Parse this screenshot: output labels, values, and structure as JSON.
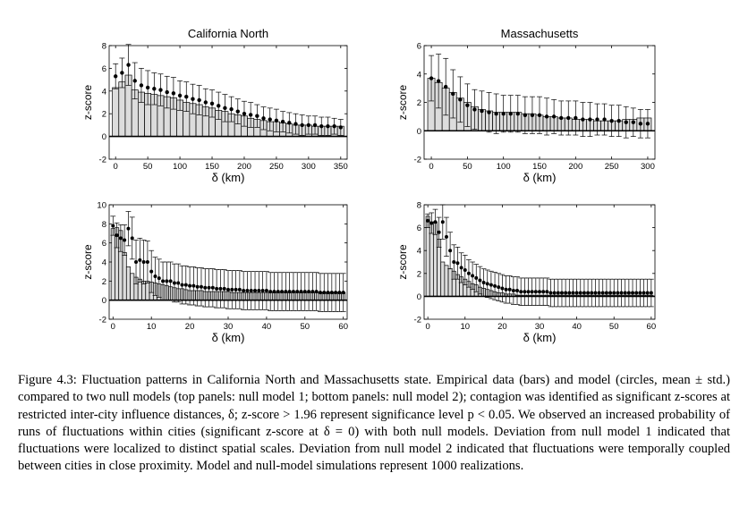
{
  "colors": {
    "bar_fill": "#dcdcdc",
    "bar_stroke": "#000000",
    "marker": "#000000"
  },
  "chart_data": [
    {
      "type": "bar",
      "title": "California North",
      "xlabel": "δ (km)",
      "ylabel": "z-score",
      "xlim": [
        -10,
        360
      ],
      "ylim": [
        -2,
        8
      ],
      "xticks": [
        0,
        50,
        100,
        150,
        200,
        250,
        300,
        350
      ],
      "yticks": [
        -2,
        0,
        2,
        4,
        6,
        8
      ],
      "step": 10,
      "series": [
        {
          "kind": "bars",
          "values": [
            4.3,
            4.8,
            5.4,
            4.1,
            3.9,
            3.8,
            3.7,
            3.6,
            3.5,
            3.4,
            3.2,
            3.0,
            2.9,
            2.8,
            2.6,
            2.5,
            2.3,
            2.2,
            2.0,
            1.9,
            1.8,
            1.6,
            1.5,
            1.4,
            1.3,
            1.3,
            1.2,
            1.1,
            1.0,
            1.0,
            1.0,
            0.9,
            0.9,
            0.9,
            0.9,
            0.9
          ]
        },
        {
          "kind": "errorbars",
          "values": [
            5.3,
            5.6,
            6.3,
            4.9,
            4.5,
            4.3,
            4.2,
            4.1,
            3.9,
            3.8,
            3.6,
            3.5,
            3.3,
            3.2,
            3.0,
            2.9,
            2.7,
            2.5,
            2.4,
            2.2,
            2.0,
            1.9,
            1.8,
            1.6,
            1.5,
            1.4,
            1.3,
            1.2,
            1.1,
            1.0,
            1.0,
            1.0,
            0.9,
            0.9,
            0.9,
            0.8
          ],
          "err": [
            1.1,
            1.3,
            1.8,
            1.6,
            1.5,
            1.5,
            1.4,
            1.4,
            1.4,
            1.4,
            1.3,
            1.3,
            1.3,
            1.3,
            1.2,
            1.2,
            1.2,
            1.2,
            1.1,
            1.1,
            1.1,
            1.1,
            1.0,
            1.0,
            1.0,
            1.0,
            0.9,
            0.9,
            0.9,
            0.9,
            0.8,
            0.8,
            0.8,
            0.8,
            0.7,
            0.7
          ]
        }
      ]
    },
    {
      "type": "bar",
      "title": "Massachusetts",
      "xlabel": "δ (km)",
      "ylabel": "z-score",
      "xlim": [
        -10,
        310
      ],
      "ylim": [
        -2,
        6
      ],
      "xticks": [
        0,
        50,
        100,
        150,
        200,
        250,
        300
      ],
      "yticks": [
        -2,
        0,
        2,
        4,
        6
      ],
      "step": 10,
      "series": [
        {
          "kind": "bars",
          "values": [
            3.7,
            3.4,
            3.0,
            2.7,
            2.3,
            2.0,
            1.7,
            1.5,
            1.4,
            1.3,
            1.3,
            1.3,
            1.3,
            1.2,
            1.2,
            1.1,
            1.0,
            1.0,
            0.9,
            0.9,
            0.8,
            0.8,
            0.8,
            0.7,
            0.7,
            0.7,
            0.7,
            0.8,
            0.8,
            0.9,
            0.9
          ]
        },
        {
          "kind": "errorbars",
          "values": [
            3.7,
            3.5,
            3.1,
            2.6,
            2.2,
            1.8,
            1.5,
            1.4,
            1.3,
            1.2,
            1.2,
            1.2,
            1.2,
            1.1,
            1.1,
            1.1,
            1.0,
            1.0,
            0.9,
            0.9,
            0.9,
            0.8,
            0.8,
            0.8,
            0.8,
            0.7,
            0.7,
            0.6,
            0.6,
            0.5,
            0.5
          ],
          "err": [
            1.6,
            1.9,
            2.0,
            1.7,
            1.6,
            1.5,
            1.4,
            1.4,
            1.4,
            1.4,
            1.3,
            1.3,
            1.3,
            1.3,
            1.3,
            1.3,
            1.3,
            1.2,
            1.2,
            1.2,
            1.2,
            1.2,
            1.2,
            1.1,
            1.1,
            1.1,
            1.1,
            1.1,
            1.0,
            1.0,
            1.0
          ]
        }
      ]
    },
    {
      "type": "bar",
      "xlabel": "δ (km)",
      "ylabel": "z-score",
      "xlim": [
        -1,
        61
      ],
      "ylim": [
        -2,
        10
      ],
      "xticks": [
        0,
        10,
        20,
        30,
        40,
        50,
        60
      ],
      "yticks": [
        -2,
        0,
        2,
        4,
        6,
        8,
        10
      ],
      "step": 1,
      "series": [
        {
          "kind": "bars",
          "values": [
            7.5,
            7.6,
            7.3,
            5.0,
            3.5,
            2.8,
            2.4,
            2.2,
            2.0,
            2.0,
            1.9,
            1.8,
            1.7,
            1.6,
            1.5,
            1.4,
            1.3,
            1.2,
            1.2,
            1.1,
            1.0,
            1.0,
            1.0,
            1.0,
            0.9,
            0.9,
            0.9,
            0.9,
            0.9,
            0.9,
            0.9,
            0.8,
            0.8,
            0.8,
            0.8,
            0.8,
            0.8,
            0.8,
            0.8,
            0.8,
            0.8,
            0.8,
            0.8,
            0.8,
            0.8,
            0.8,
            0.8,
            0.8,
            0.8,
            0.8,
            0.8,
            0.8,
            0.8,
            0.8,
            0.8,
            0.8,
            0.8,
            0.8,
            0.8,
            0.8,
            0.8
          ]
        },
        {
          "kind": "errorbars",
          "values": [
            7.8,
            6.8,
            6.5,
            6.3,
            7.5,
            6.5,
            4.0,
            4.2,
            4.0,
            4.0,
            3.0,
            2.5,
            2.3,
            2.0,
            2.0,
            2.0,
            1.8,
            1.8,
            1.6,
            1.6,
            1.5,
            1.5,
            1.4,
            1.4,
            1.3,
            1.3,
            1.3,
            1.2,
            1.2,
            1.2,
            1.1,
            1.1,
            1.1,
            1.1,
            1.0,
            1.0,
            1.0,
            1.0,
            1.0,
            1.0,
            1.0,
            0.9,
            0.9,
            0.9,
            0.9,
            0.9,
            0.9,
            0.9,
            0.9,
            0.9,
            0.9,
            0.9,
            0.9,
            0.9,
            0.8,
            0.8,
            0.8,
            0.8,
            0.8,
            0.8,
            0.8
          ],
          "err": [
            1.0,
            1.3,
            1.4,
            1.6,
            1.8,
            2.2,
            2.3,
            2.3,
            2.3,
            2.2,
            2.2,
            2.0,
            2.0,
            2.0,
            2.0,
            2.0,
            2.0,
            2.0,
            2.0,
            2.0,
            2.0,
            2.0,
            2.0,
            2.0,
            2.0,
            2.0,
            2.0,
            2.0,
            2.0,
            2.0,
            2.0,
            2.0,
            2.0,
            2.0,
            2.0,
            2.0,
            2.0,
            2.0,
            2.0,
            2.0,
            2.0,
            2.0,
            2.0,
            2.0,
            2.0,
            2.0,
            2.0,
            2.0,
            2.0,
            2.0,
            2.0,
            2.0,
            2.0,
            2.0,
            2.0,
            2.0,
            2.0,
            2.0,
            2.0,
            2.0,
            2.0
          ]
        }
      ]
    },
    {
      "type": "bar",
      "xlabel": "δ (km)",
      "ylabel": "z-score",
      "xlim": [
        -1,
        61
      ],
      "ylim": [
        -2,
        8
      ],
      "xticks": [
        0,
        10,
        20,
        30,
        40,
        50,
        60
      ],
      "yticks": [
        -2,
        0,
        2,
        4,
        6,
        8
      ],
      "step": 1,
      "series": [
        {
          "kind": "bars",
          "values": [
            7.0,
            6.5,
            6.5,
            5.0,
            3.0,
            2.7,
            2.4,
            2.2,
            1.9,
            1.7,
            1.5,
            1.3,
            1.1,
            1.0,
            0.8,
            0.7,
            0.6,
            0.5,
            0.4,
            0.3,
            0.3,
            0.2,
            0.2,
            0.2,
            0.1,
            0.1,
            0.1,
            0.1,
            0.1,
            0.1,
            0.1,
            0.1,
            0.1,
            0.1,
            0.1,
            0.1,
            0.1,
            0.1,
            0.1,
            0.1,
            0.1,
            0.1,
            0.1,
            0.1,
            0.1,
            0.1,
            0.1,
            0.1,
            0.1,
            0.1,
            0.1,
            0.1,
            0.1,
            0.1,
            0.1,
            0.1,
            0.1,
            0.1,
            0.1,
            0.1,
            0.1
          ]
        },
        {
          "kind": "errorbars",
          "values": [
            6.6,
            6.4,
            6.5,
            5.6,
            6.5,
            5.2,
            4.0,
            3.0,
            2.9,
            2.5,
            2.3,
            2.0,
            1.8,
            1.6,
            1.4,
            1.2,
            1.1,
            1.0,
            0.9,
            0.8,
            0.7,
            0.6,
            0.6,
            0.5,
            0.5,
            0.4,
            0.4,
            0.4,
            0.4,
            0.4,
            0.4,
            0.4,
            0.4,
            0.3,
            0.3,
            0.3,
            0.3,
            0.3,
            0.3,
            0.3,
            0.3,
            0.3,
            0.3,
            0.3,
            0.3,
            0.3,
            0.3,
            0.3,
            0.3,
            0.3,
            0.3,
            0.3,
            0.3,
            0.3,
            0.3,
            0.3,
            0.3,
            0.3,
            0.3,
            0.3,
            0.3
          ],
          "err": [
            0.6,
            0.9,
            1.1,
            1.3,
            1.5,
            1.7,
            1.6,
            1.5,
            1.4,
            1.3,
            1.3,
            1.2,
            1.2,
            1.2,
            1.2,
            1.2,
            1.2,
            1.2,
            1.2,
            1.2,
            1.2,
            1.2,
            1.2,
            1.2,
            1.2,
            1.2,
            1.2,
            1.2,
            1.2,
            1.2,
            1.2,
            1.2,
            1.2,
            1.2,
            1.2,
            1.2,
            1.2,
            1.2,
            1.2,
            1.2,
            1.2,
            1.2,
            1.2,
            1.2,
            1.2,
            1.2,
            1.2,
            1.2,
            1.2,
            1.2,
            1.2,
            1.2,
            1.2,
            1.2,
            1.2,
            1.2,
            1.2,
            1.2,
            1.2,
            1.2,
            1.2
          ]
        }
      ]
    }
  ],
  "caption": "Figure 4.3:  Fluctuation patterns in California North and Massachusetts state. Empirical data (bars) and model (circles, mean ± std.) compared to two null models (top panels: null model 1; bottom panels: null model 2); contagion was identified as significant z-scores at restricted inter-city influence distances, δ; z-score > 1.96 represent significance level p < 0.05. We observed an increased probability of runs of fluctuations within cities (significant z-score at δ = 0) with both null models. Deviation from null model 1 indicated that fluctuations were localized to distinct spatial scales. Deviation from null model 2 indicated that fluctuations were temporally coupled between cities in close proximity. Model and null-model simulations represent 1000 realizations."
}
